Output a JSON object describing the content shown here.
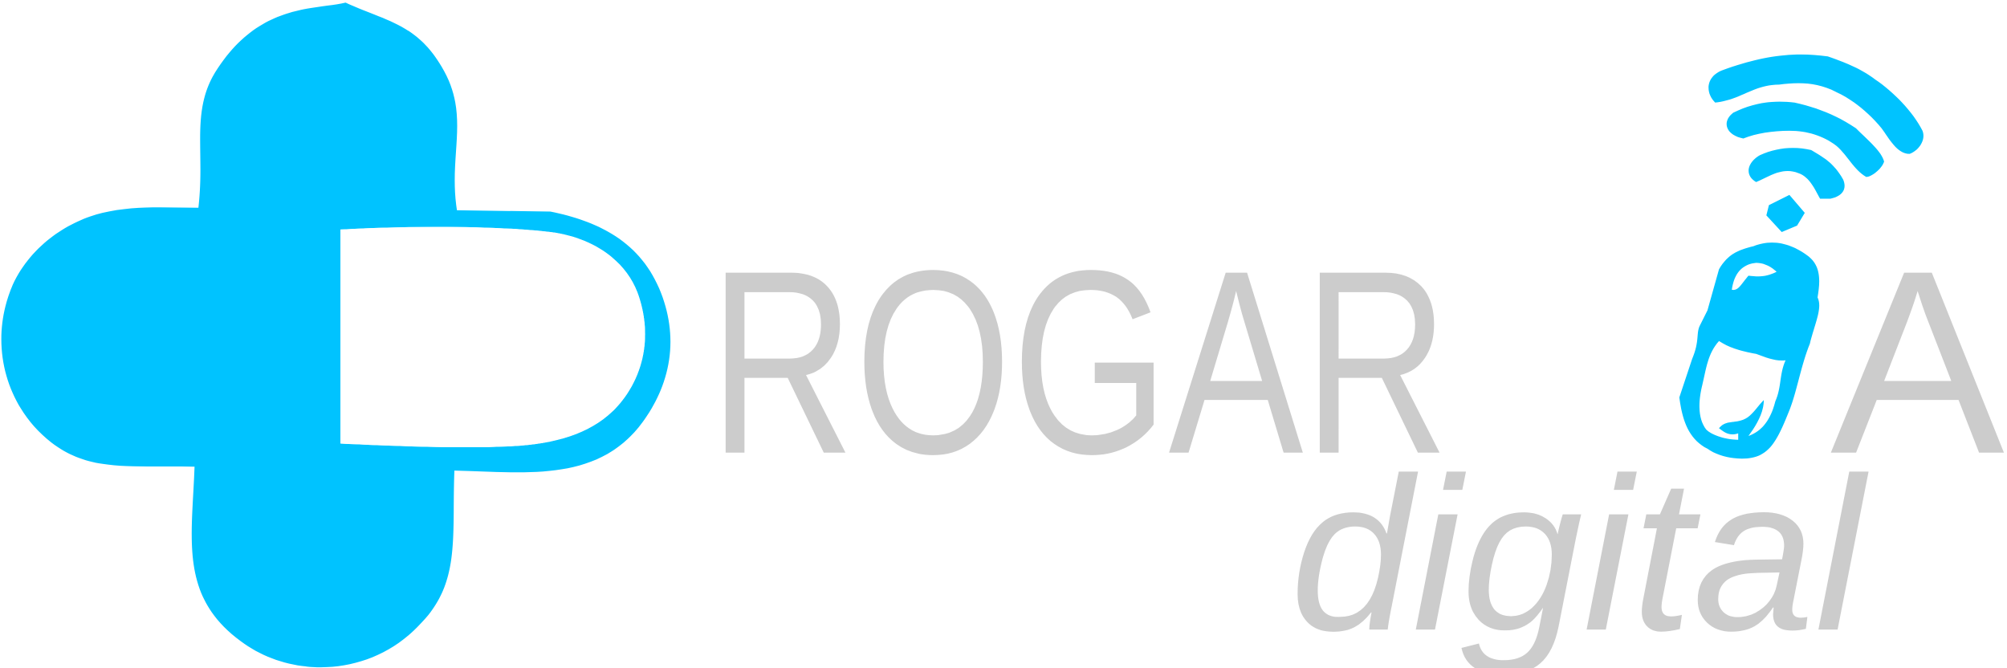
{
  "logo": {
    "brand_prefix": "D",
    "brand_main_left": "ROGAR",
    "brand_main_right": "A",
    "brand_sub": "digital",
    "colors": {
      "brand_blue": "#00c3ff",
      "wordmark_gray": "#cccccc",
      "inner_white": "#ffffff"
    },
    "icons": [
      "medical-cross-icon",
      "pill-capsule-icon",
      "wifi-signal-icon"
    ]
  }
}
